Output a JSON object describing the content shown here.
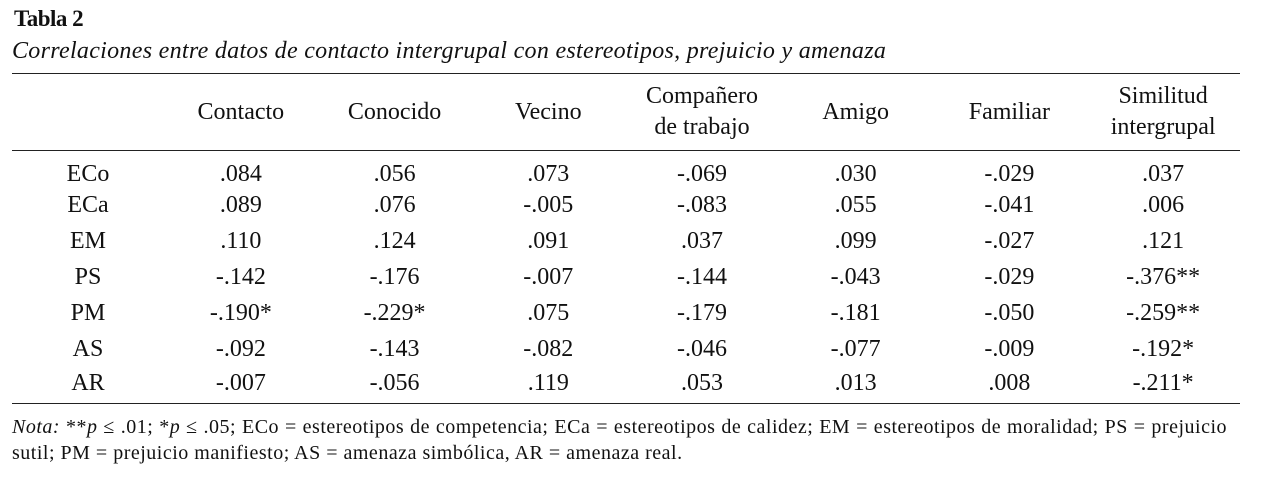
{
  "title": "Tabla 2",
  "caption": "Correlaciones entre datos de contacto intergrupal con estereotipos, prejuicio y amenaza",
  "table": {
    "columns": [
      [
        "Contacto"
      ],
      [
        "Conocido"
      ],
      [
        "Vecino"
      ],
      [
        "Compañero",
        "de trabajo"
      ],
      [
        "Amigo"
      ],
      [
        "Familiar"
      ],
      [
        "Similitud",
        "intergrupal"
      ]
    ],
    "rows": [
      {
        "label": "ECo",
        "values": [
          ".084",
          ".056",
          ".073",
          "-.069",
          ".030",
          "-.029",
          ".037"
        ]
      },
      {
        "label": "ECa",
        "values": [
          ".089",
          ".076",
          "-.005",
          "-.083",
          ".055",
          "-.041",
          ".006"
        ]
      },
      {
        "label": "EM",
        "values": [
          ".110",
          ".124",
          ".091",
          ".037",
          ".099",
          "-.027",
          ".121"
        ]
      },
      {
        "label": "PS",
        "values": [
          "-.142",
          "-.176",
          "-.007",
          "-.144",
          "-.043",
          "-.029",
          "-.376**"
        ]
      },
      {
        "label": "PM",
        "values": [
          "-.190*",
          "-.229*",
          ".075",
          "-.179",
          "-.181",
          "-.050",
          "-.259**"
        ]
      },
      {
        "label": "AS",
        "values": [
          "-.092",
          "-.143",
          "-.082",
          "-.046",
          "-.077",
          "-.009",
          "-.192*"
        ]
      },
      {
        "label": "AR",
        "values": [
          "-.007",
          "-.056",
          ".119",
          ".053",
          ".013",
          ".008",
          "-.211*"
        ]
      }
    ]
  },
  "note": [
    {
      "text": "Nota:",
      "italic": true
    },
    {
      "text": " **",
      "italic": false
    },
    {
      "text": "p",
      "italic": true
    },
    {
      "text": " ≤ .01; *",
      "italic": false
    },
    {
      "text": "p",
      "italic": true
    },
    {
      "text": " ≤ .05; ECo = estereotipos de competencia; ECa = estereotipos de calidez; EM = estereotipos de moralidad; PS = prejuicio sutil; PM = prejuicio manifiesto; AS = amenaza simbólica, AR = amenaza real.",
      "italic": false
    }
  ]
}
